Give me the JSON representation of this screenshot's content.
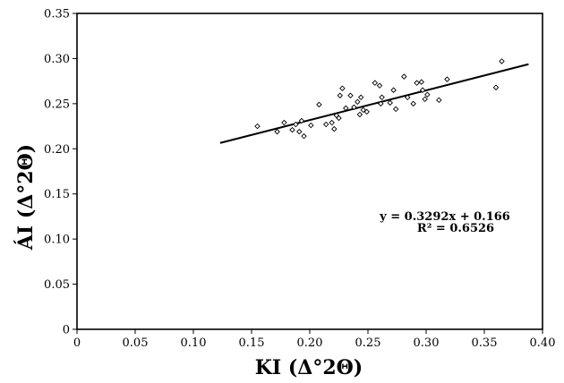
{
  "chart_data": {
    "type": "scatter",
    "xlabel": "KI (Δ°2Θ)",
    "ylabel": "ÁI (Δ°2Θ)",
    "xlim": [
      0,
      0.4
    ],
    "ylim": [
      0,
      0.35
    ],
    "x_ticks": [
      0,
      0.05,
      0.1,
      0.15,
      0.2,
      0.25,
      0.3,
      0.35,
      0.4
    ],
    "x_tick_labels": [
      "0",
      "0.05",
      "0.10",
      "0.15",
      "0.20",
      "0.25",
      "0.30",
      "0.35",
      "0.40"
    ],
    "y_ticks": [
      0,
      0.05,
      0.1,
      0.15,
      0.2,
      0.25,
      0.3,
      0.35
    ],
    "y_tick_labels": [
      "0",
      "0.05",
      "0.10",
      "0.15",
      "0.20",
      "0.25",
      "0.30",
      "0.35"
    ],
    "grid": false,
    "marker": "open-diamond",
    "points": [
      [
        0.155,
        0.225
      ],
      [
        0.172,
        0.219
      ],
      [
        0.178,
        0.229
      ],
      [
        0.185,
        0.221
      ],
      [
        0.188,
        0.227
      ],
      [
        0.191,
        0.219
      ],
      [
        0.193,
        0.231
      ],
      [
        0.195,
        0.214
      ],
      [
        0.201,
        0.226
      ],
      [
        0.208,
        0.249
      ],
      [
        0.214,
        0.227
      ],
      [
        0.219,
        0.229
      ],
      [
        0.221,
        0.222
      ],
      [
        0.223,
        0.237
      ],
      [
        0.225,
        0.234
      ],
      [
        0.226,
        0.259
      ],
      [
        0.228,
        0.267
      ],
      [
        0.231,
        0.245
      ],
      [
        0.235,
        0.259
      ],
      [
        0.238,
        0.246
      ],
      [
        0.241,
        0.252
      ],
      [
        0.243,
        0.238
      ],
      [
        0.244,
        0.257
      ],
      [
        0.246,
        0.243
      ],
      [
        0.249,
        0.241
      ],
      [
        0.256,
        0.273
      ],
      [
        0.26,
        0.27
      ],
      [
        0.261,
        0.25
      ],
      [
        0.262,
        0.257
      ],
      [
        0.269,
        0.251
      ],
      [
        0.272,
        0.265
      ],
      [
        0.274,
        0.244
      ],
      [
        0.281,
        0.28
      ],
      [
        0.284,
        0.257
      ],
      [
        0.289,
        0.25
      ],
      [
        0.292,
        0.273
      ],
      [
        0.296,
        0.274
      ],
      [
        0.297,
        0.265
      ],
      [
        0.299,
        0.255
      ],
      [
        0.301,
        0.26
      ],
      [
        0.311,
        0.254
      ],
      [
        0.318,
        0.277
      ],
      [
        0.36,
        0.268
      ],
      [
        0.365,
        0.297
      ]
    ],
    "trendline": {
      "slope": 0.3292,
      "intercept": 0.166,
      "x_range": [
        0.123,
        0.388
      ]
    },
    "annotations": {
      "equation": "y = 0.3292x + 0.166",
      "r_squared": "R² = 0.6526"
    }
  }
}
